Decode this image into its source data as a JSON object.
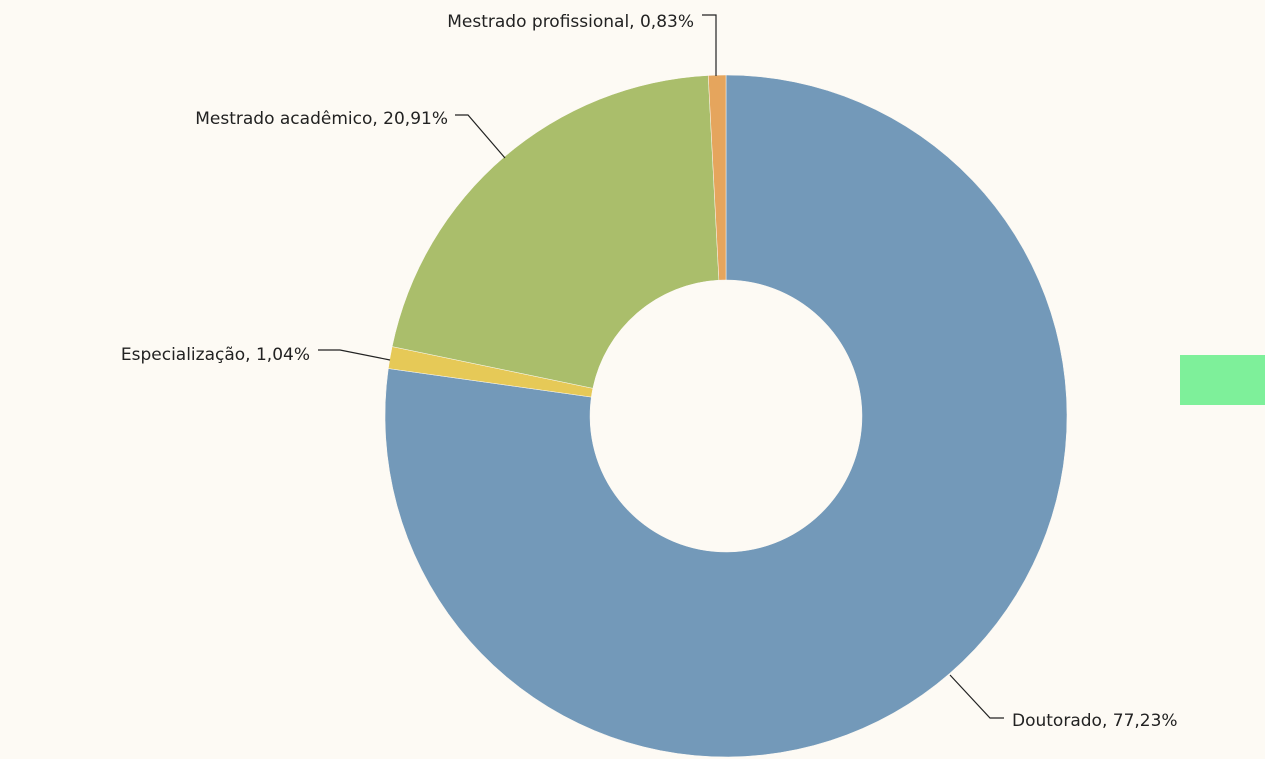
{
  "chart_data": {
    "type": "donut",
    "categories": [
      "Doutorado",
      "Especialização",
      "Mestrado acadêmico",
      "Mestrado profissional"
    ],
    "values": [
      77.23,
      1.04,
      20.91,
      0.83
    ],
    "value_labels": [
      "77,23%",
      "1,04%",
      "20,91%",
      "0,83%"
    ],
    "colors": [
      "#7399b9",
      "#e6c957",
      "#aabe6b",
      "#e5a55d"
    ]
  }
}
